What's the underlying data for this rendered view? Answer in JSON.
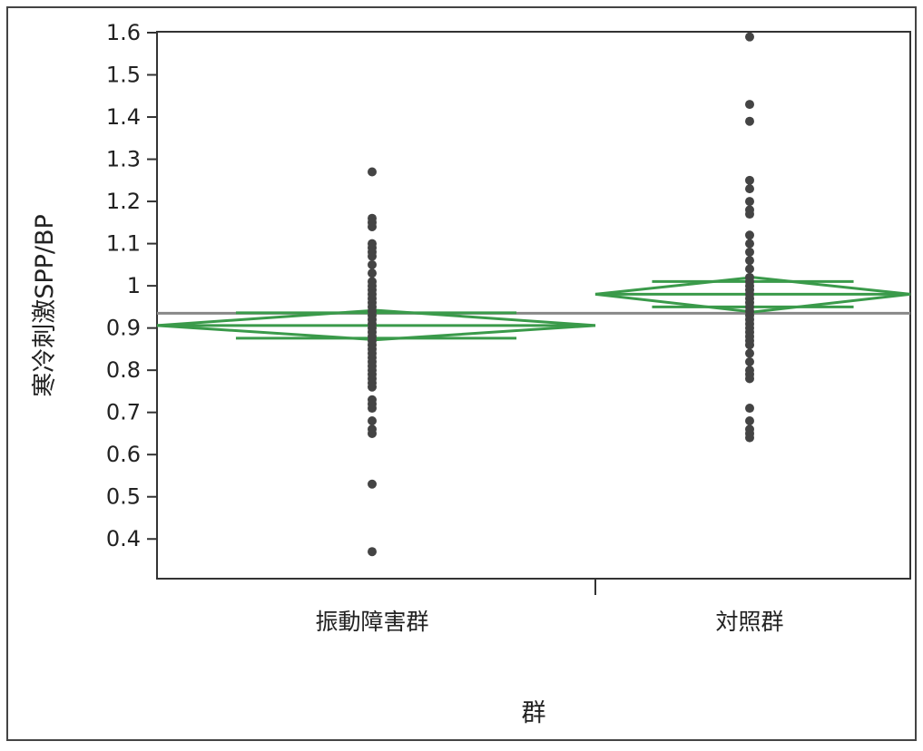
{
  "chart_data": {
    "type": "scatter",
    "subtype": "oneway means diamonds with dot plot",
    "xlabel": "群",
    "ylabel": "寒冷刺激SPP/BP",
    "categories": [
      "振動障害群",
      "対照群"
    ],
    "ylim": [
      0.32,
      1.6
    ],
    "yticks": [
      "1.6",
      "1.5",
      "1.4",
      "1.3",
      "1.2",
      "1.1",
      "1",
      "0.9",
      "0.8",
      "0.7",
      "0.6",
      "0.5",
      "0.4"
    ],
    "grid": false,
    "grand_mean": 0.935,
    "series": [
      {
        "category": "振動障害群",
        "values": [
          1.27,
          1.16,
          1.15,
          1.14,
          1.1,
          1.09,
          1.08,
          1.07,
          1.05,
          1.03,
          1.01,
          1.0,
          0.99,
          0.98,
          0.97,
          0.96,
          0.95,
          0.94,
          0.93,
          0.92,
          0.91,
          0.9,
          0.89,
          0.88,
          0.87,
          0.86,
          0.85,
          0.84,
          0.83,
          0.82,
          0.81,
          0.8,
          0.79,
          0.78,
          0.77,
          0.76,
          0.73,
          0.72,
          0.71,
          0.68,
          0.66,
          0.65,
          0.53,
          0.37
        ],
        "mean": 0.906,
        "ci": [
          0.872,
          0.942
        ]
      },
      {
        "category": "対照群",
        "values": [
          1.59,
          1.43,
          1.39,
          1.25,
          1.23,
          1.2,
          1.18,
          1.17,
          1.12,
          1.1,
          1.08,
          1.06,
          1.04,
          1.02,
          1.01,
          1.0,
          0.99,
          0.98,
          0.97,
          0.96,
          0.95,
          0.94,
          0.93,
          0.92,
          0.91,
          0.9,
          0.89,
          0.88,
          0.87,
          0.86,
          0.84,
          0.82,
          0.8,
          0.79,
          0.78,
          0.71,
          0.68,
          0.66,
          0.65,
          0.64
        ],
        "mean": 0.98,
        "ci": [
          0.938,
          1.02
        ]
      }
    ],
    "colors": {
      "diamond": "#3a9a4a",
      "points": "#444444",
      "grand_mean_line": "#888888",
      "axis": "#333333"
    }
  }
}
